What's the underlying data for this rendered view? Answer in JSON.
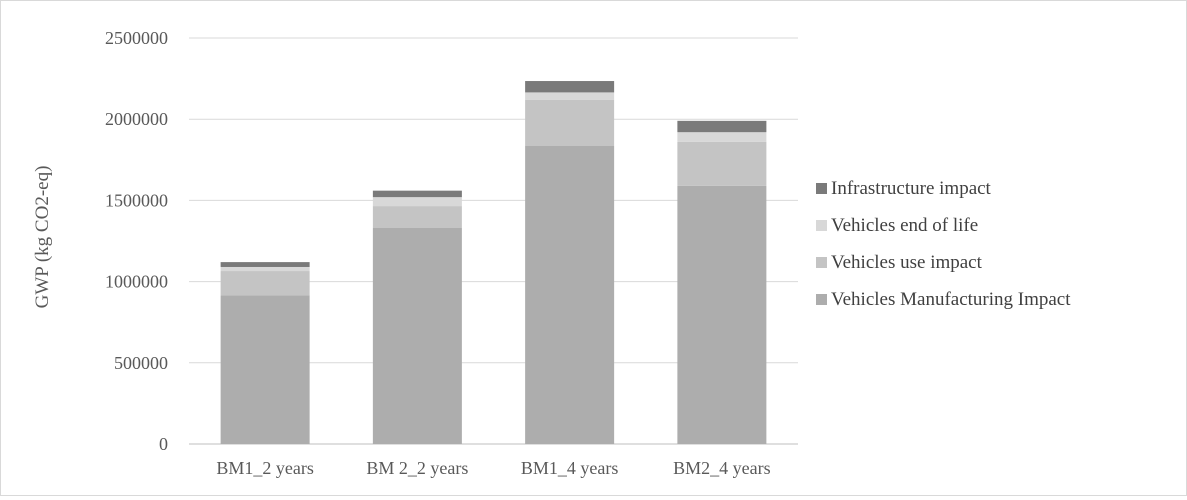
{
  "chart_data": {
    "type": "bar",
    "stacked": true,
    "title": "",
    "xlabel": "",
    "ylabel": "GWP (kg CO2-eq)",
    "ylim": [
      0,
      2500000
    ],
    "yticks": [
      0,
      500000,
      1000000,
      1500000,
      2000000,
      2500000
    ],
    "grid": true,
    "legend_position": "right",
    "categories": [
      "BM1_2 years",
      "BM 2_2 years",
      "BM1_4 years",
      "BM2_4 years"
    ],
    "series": [
      {
        "name": "Vehicles Manufacturing Impact",
        "color": "#adadad",
        "values": [
          915000,
          1330000,
          1835000,
          1590000
        ]
      },
      {
        "name": "Vehicles use impact",
        "color": "#c4c4c4",
        "values": [
          150000,
          135000,
          285000,
          270000
        ]
      },
      {
        "name": "Vehicles end of life",
        "color": "#d8d8d8",
        "values": [
          25000,
          55000,
          45000,
          60000
        ]
      },
      {
        "name": "Infrastructure impact",
        "color": "#7a7a7a",
        "values": [
          30000,
          40000,
          70000,
          70000
        ]
      }
    ],
    "legend_order": [
      "Infrastructure impact",
      "Vehicles end of life",
      "Vehicles use impact",
      "Vehicles Manufacturing Impact"
    ]
  }
}
